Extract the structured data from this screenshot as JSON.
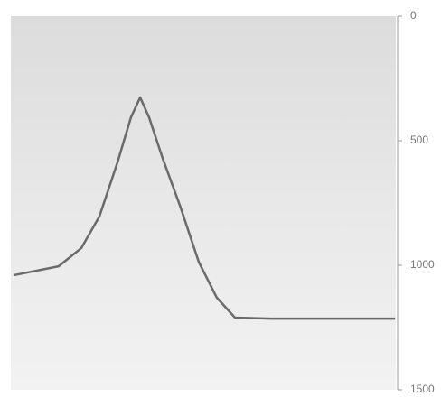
{
  "chart_data": {
    "type": "line",
    "axis_side": "right",
    "y_inverted": true,
    "x": [
      0.7,
      6.6,
      12.4,
      18.3,
      23,
      27.7,
      31.2,
      33.6,
      35.9,
      39.4,
      44.1,
      48.8,
      53.5,
      58.2,
      67.6,
      99.8
    ],
    "xlim": [
      0,
      100
    ],
    "series": [
      {
        "color": "#6a6a6a",
        "values": [
          1040,
          1022,
          1004,
          931,
          804,
          587,
          406,
          326,
          406,
          569,
          768,
          986,
          1130,
          1210,
          1214,
          1214
        ]
      }
    ],
    "ylim": [
      0,
      1500
    ],
    "yticks": [
      0,
      500,
      1000,
      1500
    ]
  }
}
